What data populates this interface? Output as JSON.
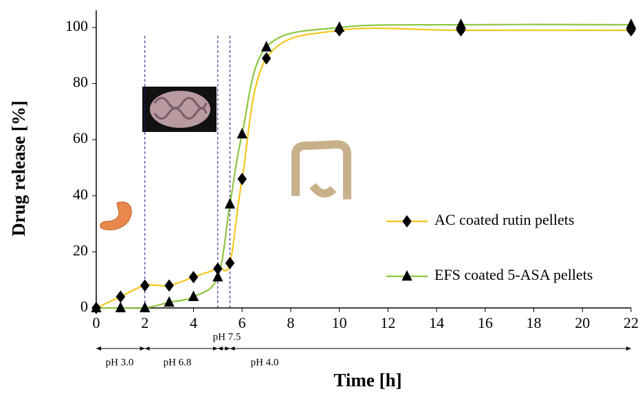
{
  "chart_data": {
    "type": "line",
    "ylabel": "Drug release [%]",
    "xlabel": "Time [h]",
    "xlim": [
      0,
      22
    ],
    "xticks": [
      0,
      2,
      4,
      6,
      8,
      10,
      12,
      14,
      16,
      18,
      20,
      22
    ],
    "ylim": [
      0,
      100
    ],
    "yticks": [
      0,
      20,
      40,
      60,
      80,
      100
    ],
    "legend": "right",
    "series": [
      {
        "name": "AC coated rutin pellets",
        "color": "#f5c518",
        "marker": "diamond",
        "x": [
          0,
          1,
          2,
          3,
          4,
          5,
          5.5,
          6,
          7,
          10,
          15,
          22
        ],
        "values": [
          0,
          4,
          8,
          8,
          11,
          14,
          16,
          46,
          89,
          99,
          99,
          99
        ]
      },
      {
        "name": "EFS coated 5-ASA pellets",
        "color": "#8cc63f",
        "marker": "triangle",
        "x": [
          0,
          1,
          2,
          3,
          4,
          5,
          5.5,
          6,
          7,
          10,
          15,
          22
        ],
        "values": [
          0,
          0,
          0,
          2,
          4,
          11,
          37,
          62,
          93,
          100,
          101,
          101
        ]
      }
    ],
    "phase_lines": [
      2,
      5,
      5.5
    ],
    "phases": [
      {
        "label": "pH 3.0",
        "start": 0,
        "end": 2
      },
      {
        "label": "pH 6.8",
        "start": 2,
        "end": 5
      },
      {
        "label": "pH 7.5",
        "start": 5,
        "end": 5.5
      },
      {
        "label": "pH 4.0",
        "start": 5.5,
        "end": 22
      }
    ]
  }
}
